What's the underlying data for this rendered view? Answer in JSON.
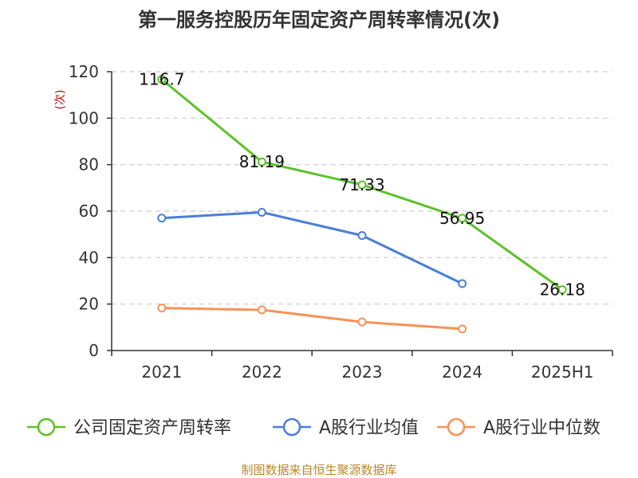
{
  "chart_data": {
    "type": "line",
    "title": "第一服务控股历年固定资产周转率情况(次)",
    "ylabel": "(次)",
    "xlabel": "",
    "categories": [
      "2021",
      "2022",
      "2023",
      "2024",
      "2025H1"
    ],
    "ylim": [
      0,
      120
    ],
    "yticks": [
      0,
      20,
      40,
      60,
      80,
      100,
      120
    ],
    "grid": true,
    "legend_position": "bottom",
    "series": [
      {
        "name": "公司固定资产周转率",
        "color": "#5cc22a",
        "values": [
          116.7,
          81.19,
          71.33,
          56.95,
          26.18
        ],
        "labels": [
          "116.7",
          "81.19",
          "71.33",
          "56.95",
          "26.18"
        ],
        "show_labels": true
      },
      {
        "name": "A股行业均值",
        "color": "#4a7fd8",
        "values": [
          57,
          59.5,
          49.5,
          28.8,
          null
        ],
        "show_labels": false
      },
      {
        "name": "A股行业中位数",
        "color": "#f5935a",
        "values": [
          18.3,
          17.5,
          12.3,
          9.3,
          null
        ],
        "show_labels": false
      }
    ],
    "source": "制图数据来自恒生聚源数据库"
  }
}
